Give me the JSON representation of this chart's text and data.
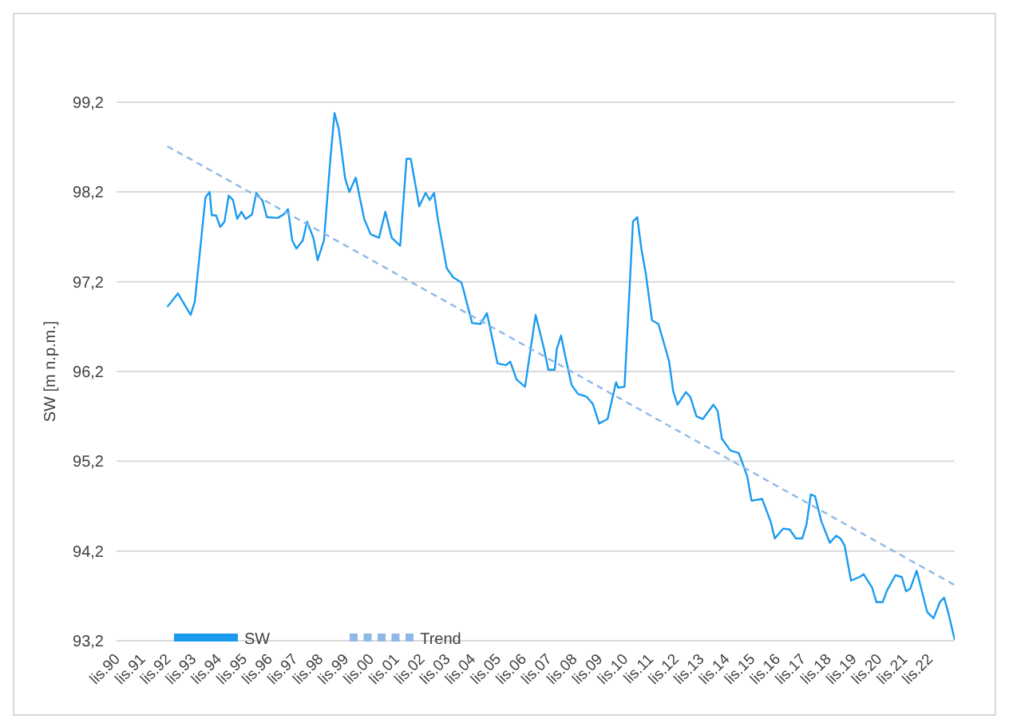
{
  "chart_data": {
    "type": "line",
    "ylabel": "SW [m n.p.m.]",
    "xlim": [
      "1990-09",
      "2023-09"
    ],
    "xticks": [
      {
        "value": "1990-11",
        "label": "lis.90"
      },
      {
        "value": "1991-11",
        "label": "lis.91"
      },
      {
        "value": "1992-11",
        "label": "lis.92"
      },
      {
        "value": "1993-11",
        "label": "lis.93"
      },
      {
        "value": "1994-11",
        "label": "lis.94"
      },
      {
        "value": "1995-11",
        "label": "lis.95"
      },
      {
        "value": "1996-11",
        "label": "lis.96"
      },
      {
        "value": "1997-11",
        "label": "lis.97"
      },
      {
        "value": "1998-11",
        "label": "lis.98"
      },
      {
        "value": "1999-11",
        "label": "lis.99"
      },
      {
        "value": "2000-11",
        "label": "lis.00"
      },
      {
        "value": "2001-11",
        "label": "lis.01"
      },
      {
        "value": "2002-11",
        "label": "lis.02"
      },
      {
        "value": "2003-11",
        "label": "lis.03"
      },
      {
        "value": "2004-11",
        "label": "lis.04"
      },
      {
        "value": "2005-11",
        "label": "lis.05"
      },
      {
        "value": "2006-11",
        "label": "lis.06"
      },
      {
        "value": "2007-11",
        "label": "lis.07"
      },
      {
        "value": "2008-11",
        "label": "lis.08"
      },
      {
        "value": "2009-11",
        "label": "lis.09"
      },
      {
        "value": "2010-11",
        "label": "lis.10"
      },
      {
        "value": "2011-11",
        "label": "lis.11"
      },
      {
        "value": "2012-11",
        "label": "lis.12"
      },
      {
        "value": "2013-11",
        "label": "lis.13"
      },
      {
        "value": "2014-11",
        "label": "lis.14"
      },
      {
        "value": "2015-11",
        "label": "lis.15"
      },
      {
        "value": "2016-11",
        "label": "lis.16"
      },
      {
        "value": "2017-11",
        "label": "lis.17"
      },
      {
        "value": "2018-11",
        "label": "lis.18"
      },
      {
        "value": "2019-11",
        "label": "lis.19"
      },
      {
        "value": "2020-11",
        "label": "lis.20"
      },
      {
        "value": "2021-11",
        "label": "lis.21"
      },
      {
        "value": "2022-11",
        "label": "lis.22"
      }
    ],
    "ylim": [
      93.2,
      99.2
    ],
    "yticks": [
      {
        "value": 93.2,
        "label": "93,2"
      },
      {
        "value": 94.2,
        "label": "94,2"
      },
      {
        "value": 95.2,
        "label": "95,2"
      },
      {
        "value": 96.2,
        "label": "96,2"
      },
      {
        "value": 97.2,
        "label": "97,2"
      },
      {
        "value": 98.2,
        "label": "98,2"
      },
      {
        "value": 99.2,
        "label": "99,2"
      }
    ],
    "grid": "y",
    "legend": "bottom left",
    "marker": "none",
    "series": [
      {
        "name": "SW",
        "color": "#1a9bf0",
        "line_style": "solid",
        "x": [
          "1992-09",
          "1993-02",
          "1993-08",
          "1993-10",
          "1994-03",
          "1994-05",
          "1994-06",
          "1994-08",
          "1994-10",
          "1994-12",
          "1995-02",
          "1995-04",
          "1995-06",
          "1995-08",
          "1995-10",
          "1996-01",
          "1996-03",
          "1996-06",
          "1996-08",
          "1997-01",
          "1997-04",
          "1997-06",
          "1997-08",
          "1997-10",
          "1998-01",
          "1998-03",
          "1998-06",
          "1998-08",
          "1998-11",
          "1999-02",
          "1999-04",
          "1999-06",
          "1999-09",
          "1999-11",
          "2000-02",
          "2000-06",
          "2000-09",
          "2001-01",
          "2001-04",
          "2001-07",
          "2001-11",
          "2002-02",
          "2002-04",
          "2002-08",
          "2002-11",
          "2003-01",
          "2003-03",
          "2003-05",
          "2003-07",
          "2003-09",
          "2003-12",
          "2004-04",
          "2004-09",
          "2005-01",
          "2005-04",
          "2005-09",
          "2006-01",
          "2006-03",
          "2006-06",
          "2006-10",
          "2007-03",
          "2007-07",
          "2007-09",
          "2007-12",
          "2008-01",
          "2008-03",
          "2008-05",
          "2008-08",
          "2008-11",
          "2009-03",
          "2009-06",
          "2009-09",
          "2010-01",
          "2010-05",
          "2010-06",
          "2010-09",
          "2011-01",
          "2011-03",
          "2011-05",
          "2011-07",
          "2011-10",
          "2012-01",
          "2012-06",
          "2012-08",
          "2012-10",
          "2013-02",
          "2013-04",
          "2013-07",
          "2013-10",
          "2014-03",
          "2014-05",
          "2014-07",
          "2014-11",
          "2015-03",
          "2015-07",
          "2015-09",
          "2016-02",
          "2016-06",
          "2016-08",
          "2016-12",
          "2017-03",
          "2017-06",
          "2017-09",
          "2017-11",
          "2018-01",
          "2018-03",
          "2018-06",
          "2018-10",
          "2019-01",
          "2019-03",
          "2019-05",
          "2019-08",
          "2019-12",
          "2020-02",
          "2020-06",
          "2020-08",
          "2020-11",
          "2021-01",
          "2021-05",
          "2021-08",
          "2021-10",
          "2021-12",
          "2022-03",
          "2022-04",
          "2022-08",
          "2022-11",
          "2023-02",
          "2023-04",
          "2023-06",
          "2023-09"
        ],
        "values": [
          96.92,
          97.07,
          96.83,
          96.98,
          98.14,
          98.2,
          97.94,
          97.94,
          97.81,
          97.87,
          98.16,
          98.11,
          97.9,
          97.98,
          97.9,
          97.95,
          98.19,
          98.1,
          97.92,
          97.91,
          97.95,
          98.01,
          97.66,
          97.57,
          97.66,
          97.87,
          97.69,
          97.44,
          97.66,
          98.56,
          99.08,
          98.9,
          98.35,
          98.2,
          98.36,
          97.9,
          97.73,
          97.69,
          97.98,
          97.69,
          97.6,
          98.57,
          98.57,
          98.04,
          98.19,
          98.11,
          98.19,
          97.87,
          97.61,
          97.35,
          97.25,
          97.19,
          96.74,
          96.73,
          96.85,
          96.29,
          96.27,
          96.31,
          96.11,
          96.03,
          96.83,
          96.45,
          96.22,
          96.22,
          96.45,
          96.6,
          96.37,
          96.05,
          95.95,
          95.92,
          95.84,
          95.62,
          95.67,
          96.08,
          96.02,
          96.03,
          97.87,
          97.92,
          97.56,
          97.3,
          96.77,
          96.73,
          96.32,
          95.98,
          95.83,
          95.97,
          95.92,
          95.7,
          95.67,
          95.83,
          95.76,
          95.45,
          95.32,
          95.29,
          95.03,
          94.76,
          94.78,
          94.53,
          94.34,
          94.45,
          94.44,
          94.34,
          94.34,
          94.5,
          94.83,
          94.81,
          94.53,
          94.29,
          94.37,
          94.34,
          94.26,
          93.87,
          93.91,
          93.94,
          93.79,
          93.63,
          93.63,
          93.76,
          93.93,
          93.91,
          93.75,
          93.78,
          93.98,
          93.89,
          93.52,
          93.45,
          93.63,
          93.68,
          93.51,
          93.21
        ]
      },
      {
        "name": "Trend",
        "color": "#8fb8e8",
        "line_style": "dashed",
        "x": [
          "1992-09",
          "2023-09"
        ],
        "values": [
          98.71,
          93.82
        ]
      }
    ]
  }
}
